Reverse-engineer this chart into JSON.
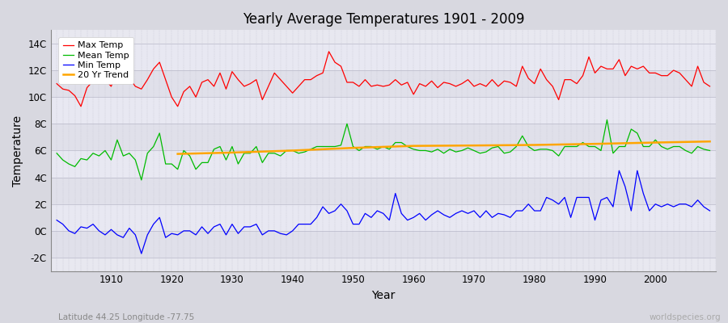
{
  "title": "Yearly Average Temperatures 1901 - 2009",
  "xlabel": "Year",
  "ylabel": "Temperature",
  "bottom_left": "Latitude 44.25 Longitude -77.75",
  "bottom_right": "worldspecies.org",
  "year_start": 1901,
  "year_end": 2009,
  "ylim": [
    -3,
    15
  ],
  "yticks": [
    -2,
    0,
    2,
    4,
    6,
    8,
    10,
    12,
    14
  ],
  "ytick_labels": [
    "-2C",
    "0C",
    "2C",
    "4C",
    "6C",
    "8C",
    "10C",
    "12C",
    "14C"
  ],
  "colors": {
    "max": "#ff0000",
    "mean": "#00bb00",
    "min": "#0000ff",
    "trend": "#ffa500",
    "fig_bg": "#d8d8e0",
    "plot_bg": "#e8e8f0"
  },
  "legend": {
    "max": "Max Temp",
    "mean": "Mean Temp",
    "min": "Min Temp",
    "trend": "20 Yr Trend"
  },
  "max_temp": [
    11.0,
    10.6,
    10.5,
    10.1,
    9.3,
    10.7,
    11.2,
    11.0,
    11.3,
    10.8,
    12.0,
    11.3,
    11.4,
    10.8,
    10.6,
    11.3,
    12.1,
    12.6,
    11.3,
    10.0,
    9.3,
    10.4,
    10.8,
    10.0,
    11.1,
    11.3,
    10.8,
    11.8,
    10.6,
    11.9,
    11.3,
    10.8,
    11.0,
    11.3,
    9.8,
    10.8,
    11.8,
    11.3,
    10.8,
    10.3,
    10.8,
    11.3,
    11.3,
    11.6,
    11.8,
    13.4,
    12.6,
    12.3,
    11.1,
    11.1,
    10.8,
    11.3,
    10.8,
    10.9,
    10.8,
    10.9,
    11.3,
    10.9,
    11.1,
    10.2,
    11.0,
    10.8,
    11.2,
    10.7,
    11.1,
    11.0,
    10.8,
    11.0,
    11.3,
    10.8,
    11.0,
    10.8,
    11.3,
    10.8,
    11.2,
    11.1,
    10.8,
    12.3,
    11.4,
    11.0,
    12.1,
    11.3,
    10.8,
    9.8,
    11.3,
    11.3,
    11.0,
    11.6,
    13.0,
    11.8,
    12.3,
    12.1,
    12.1,
    12.8,
    11.6,
    12.3,
    12.1,
    12.3,
    11.8,
    11.8,
    11.6,
    11.6,
    12.0,
    11.8,
    11.3,
    10.8,
    12.3,
    11.1,
    10.8
  ],
  "mean_temp": [
    5.8,
    5.3,
    5.0,
    4.8,
    5.4,
    5.3,
    5.8,
    5.6,
    6.0,
    5.3,
    6.8,
    5.6,
    5.8,
    5.3,
    3.8,
    5.8,
    6.3,
    7.3,
    5.0,
    5.0,
    4.6,
    6.0,
    5.6,
    4.6,
    5.1,
    5.1,
    6.1,
    6.3,
    5.3,
    6.3,
    5.0,
    5.8,
    5.8,
    6.3,
    5.1,
    5.8,
    5.8,
    5.6,
    6.0,
    6.0,
    5.8,
    5.9,
    6.1,
    6.3,
    6.3,
    6.3,
    6.3,
    6.4,
    8.0,
    6.3,
    6.0,
    6.3,
    6.3,
    6.1,
    6.3,
    6.1,
    6.6,
    6.6,
    6.3,
    6.1,
    6.0,
    6.0,
    5.9,
    6.1,
    5.8,
    6.1,
    5.9,
    6.0,
    6.2,
    6.0,
    5.8,
    5.9,
    6.2,
    6.3,
    5.8,
    5.9,
    6.3,
    7.1,
    6.3,
    6.0,
    6.1,
    6.1,
    6.0,
    5.6,
    6.3,
    6.3,
    6.3,
    6.6,
    6.3,
    6.3,
    6.0,
    8.3,
    5.8,
    6.3,
    6.3,
    7.6,
    7.3,
    6.3,
    6.3,
    6.8,
    6.3,
    6.1,
    6.3,
    6.3,
    6.0,
    5.8,
    6.3,
    6.1,
    6.0
  ],
  "min_temp": [
    0.8,
    0.5,
    0.0,
    -0.2,
    0.3,
    0.2,
    0.5,
    0.0,
    -0.3,
    0.1,
    -0.3,
    -0.5,
    0.2,
    -0.3,
    -1.7,
    -0.3,
    0.5,
    1.0,
    -0.5,
    -0.2,
    -0.3,
    0.0,
    0.0,
    -0.3,
    0.3,
    -0.2,
    0.3,
    0.5,
    -0.3,
    0.5,
    -0.2,
    0.3,
    0.3,
    0.5,
    -0.3,
    0.0,
    0.0,
    -0.2,
    -0.3,
    0.0,
    0.5,
    0.5,
    0.5,
    1.0,
    1.8,
    1.3,
    1.5,
    2.0,
    1.5,
    0.5,
    0.5,
    1.3,
    1.0,
    1.5,
    1.3,
    0.8,
    2.8,
    1.3,
    0.8,
    1.0,
    1.3,
    0.8,
    1.2,
    1.5,
    1.2,
    1.0,
    1.3,
    1.5,
    1.3,
    1.5,
    1.0,
    1.5,
    1.0,
    1.3,
    1.2,
    1.0,
    1.5,
    1.5,
    2.0,
    1.5,
    1.5,
    2.5,
    2.3,
    2.0,
    2.5,
    1.0,
    2.5,
    2.5,
    2.5,
    0.8,
    2.3,
    2.5,
    1.8,
    4.5,
    3.3,
    1.5,
    4.5,
    2.8,
    1.5,
    2.0,
    1.8,
    2.0,
    1.8,
    2.0,
    2.0,
    1.8,
    2.3,
    1.8,
    1.5
  ],
  "trend_x": [
    1921,
    1930,
    1940,
    1950,
    1960,
    1970,
    1980,
    1990,
    2000,
    2009
  ],
  "trend_y": [
    5.75,
    5.85,
    6.0,
    6.2,
    6.35,
    6.38,
    6.42,
    6.5,
    6.6,
    6.68
  ]
}
